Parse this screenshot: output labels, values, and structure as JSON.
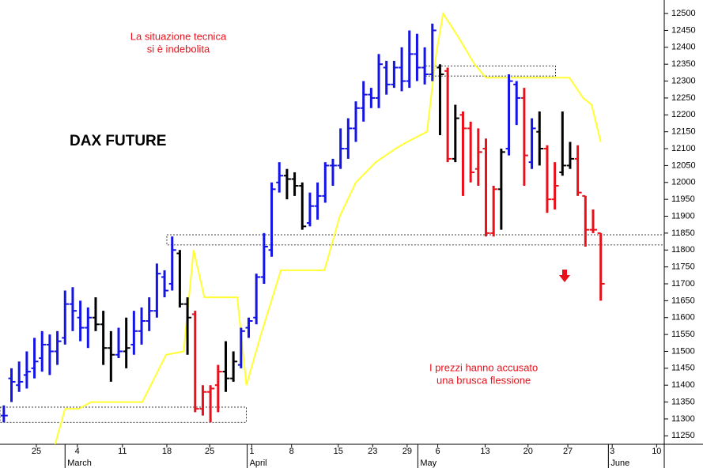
{
  "chart_data": {
    "type": "ohlc",
    "title": "DAX FUTURE",
    "annotations": [
      {
        "lines": [
          "La situazione tecnica",
          "si è indebolita"
        ],
        "color": "#e8101a",
        "x": 22.8,
        "y": 12430
      },
      {
        "lines": [
          "I prezzi hanno accusato",
          "una brusca flessione"
        ],
        "color": "#e8101a",
        "x": 62.7,
        "y": 11450
      }
    ],
    "xlim": [
      -0.5,
      86.3
    ],
    "ylim": [
      11225,
      12540
    ],
    "yticks": [
      11250,
      11300,
      11350,
      11400,
      11450,
      11500,
      11550,
      11600,
      11650,
      11700,
      11750,
      11800,
      11850,
      11900,
      11950,
      12000,
      12050,
      12100,
      12150,
      12200,
      12250,
      12300,
      12350,
      12400,
      12450,
      12500
    ],
    "xticks": [
      {
        "value": 4.25,
        "label": "25"
      },
      {
        "value": 9.6,
        "label": "4"
      },
      {
        "value": 15.5,
        "label": "11"
      },
      {
        "value": 21.3,
        "label": "18"
      },
      {
        "value": 26.9,
        "label": "25"
      },
      {
        "value": 32.4,
        "label": "1"
      },
      {
        "value": 37.6,
        "label": "8"
      },
      {
        "value": 43.7,
        "label": "15"
      },
      {
        "value": 48.2,
        "label": "23"
      },
      {
        "value": 52.7,
        "label": "29"
      },
      {
        "value": 56.7,
        "label": "6"
      },
      {
        "value": 62.9,
        "label": "13"
      },
      {
        "value": 68.5,
        "label": "20"
      },
      {
        "value": 73.7,
        "label": "27"
      },
      {
        "value": 79.5,
        "label": "3"
      },
      {
        "value": 85.3,
        "label": "10"
      }
    ],
    "month_ticks": [
      {
        "value": 8.0,
        "label": "March"
      },
      {
        "value": 31.8,
        "label": "April"
      },
      {
        "value": 54.1,
        "label": "May"
      },
      {
        "value": 79.0,
        "label": "June"
      }
    ],
    "series": [
      {
        "color": "#1414e6",
        "x": [
          0,
          1,
          2,
          3,
          4,
          5,
          6,
          7,
          8,
          9,
          10,
          11,
          15,
          17,
          18,
          19,
          20,
          21,
          22,
          31,
          32,
          33,
          34,
          35,
          36,
          40,
          41,
          42,
          43,
          44,
          45,
          46,
          47,
          48,
          49,
          50,
          51,
          52,
          53,
          54,
          55,
          56,
          66,
          67,
          69
        ],
        "open": [
          11310,
          11420,
          11400,
          11430,
          11450,
          11480,
          11520,
          11500,
          11540,
          11640,
          11600,
          11570,
          11490,
          11520,
          11560,
          11590,
          11620,
          11720,
          11700,
          11460,
          11570,
          11600,
          11720,
          11800,
          12000,
          11880,
          11930,
          11960,
          12050,
          12050,
          12100,
          12160,
          12220,
          12260,
          12250,
          12340,
          12290,
          12340,
          12300,
          12380,
          12340,
          12320,
          12100,
          12290,
          12060
        ],
        "high": [
          11340,
          11450,
          11470,
          11500,
          11540,
          11560,
          11550,
          11560,
          11680,
          11690,
          11650,
          11630,
          11570,
          11620,
          11630,
          11660,
          11760,
          11740,
          11840,
          11570,
          11600,
          11730,
          11850,
          12000,
          12060,
          11970,
          12000,
          12060,
          12070,
          12160,
          12190,
          12240,
          12300,
          12280,
          12380,
          12360,
          12360,
          12400,
          12450,
          12440,
          12400,
          12470,
          12320,
          12300,
          12190
        ],
        "low": [
          11290,
          11350,
          11380,
          11390,
          11420,
          11440,
          11430,
          11460,
          11520,
          11560,
          11530,
          11510,
          11480,
          11490,
          11520,
          11560,
          11600,
          11660,
          11680,
          11450,
          11540,
          11580,
          11700,
          11780,
          11970,
          11870,
          11890,
          11940,
          11990,
          12040,
          12070,
          12120,
          12180,
          12220,
          12220,
          12260,
          12280,
          12270,
          12280,
          12300,
          12290,
          12300,
          12080,
          12170,
          12040
        ],
        "close": [
          11310,
          11410,
          11410,
          11440,
          11470,
          11520,
          11500,
          11530,
          11640,
          11620,
          11570,
          11600,
          11500,
          11560,
          11590,
          11620,
          11730,
          11680,
          11800,
          11560,
          11590,
          11720,
          11810,
          11980,
          12020,
          11930,
          11960,
          12050,
          12050,
          12100,
          12160,
          12220,
          12260,
          12250,
          12350,
          12290,
          12340,
          12300,
          12380,
          12340,
          12320,
          12450,
          12300,
          12250,
          12160
        ]
      },
      {
        "color": "#000000",
        "x": [
          12,
          13,
          14,
          16,
          23,
          24,
          29,
          30,
          37,
          38,
          39,
          57,
          59,
          65,
          70,
          73,
          74
        ],
        "open": [
          11600,
          11580,
          11510,
          11500,
          11790,
          11640,
          11440,
          11420,
          12020,
          12010,
          11990,
          12340,
          12070,
          11980,
          12150,
          12030,
          12050
        ],
        "high": [
          11660,
          11620,
          11560,
          11600,
          11800,
          11660,
          11530,
          11500,
          12040,
          12030,
          12000,
          12350,
          12230,
          12100,
          12210,
          12210,
          12120
        ],
        "low": [
          11560,
          11460,
          11410,
          11450,
          11630,
          11490,
          11380,
          11410,
          11950,
          11960,
          11860,
          12140,
          12060,
          11860,
          12050,
          12020,
          12040
        ],
        "close": [
          11580,
          11510,
          11490,
          11510,
          11640,
          11600,
          11420,
          11470,
          12010,
          11990,
          11870,
          12320,
          12190,
          12090,
          12100,
          12050,
          12070
        ]
      },
      {
        "color": "#e8101a",
        "x": [
          25,
          26,
          27,
          28,
          58,
          60,
          61,
          62,
          63,
          64,
          68,
          71,
          72,
          75,
          76,
          77,
          78
        ],
        "open": [
          11610,
          11330,
          11380,
          11400,
          12330,
          12200,
          12160,
          12040,
          12100,
          11850,
          12250,
          12100,
          11950,
          12070,
          11960,
          11860,
          11850
        ],
        "high": [
          11620,
          11400,
          11400,
          11460,
          12340,
          12210,
          12180,
          12160,
          12130,
          11990,
          12280,
          12110,
          12060,
          12110,
          11960,
          11920,
          11850
        ],
        "low": [
          11320,
          11310,
          11290,
          11320,
          12060,
          11960,
          12000,
          11990,
          11840,
          11840,
          11990,
          11910,
          11920,
          11960,
          11810,
          11850,
          11650
        ],
        "close": [
          11330,
          11380,
          11390,
          11440,
          12070,
          12160,
          12030,
          12090,
          11850,
          11980,
          12080,
          11950,
          11990,
          11970,
          11860,
          11860,
          11700
        ]
      }
    ],
    "overlay": {
      "color": "#ffff33",
      "x": [
        6.7,
        8.0,
        9.8,
        11.4,
        18.1,
        21.2,
        23.5,
        24.8,
        26.2,
        30.5,
        31.7,
        33.6,
        36.2,
        41.9,
        43.9,
        46.0,
        48.6,
        51.2,
        52.7,
        55.3,
        56.5,
        57.4,
        59.4,
        61.5,
        63.0,
        73.9,
        75.7,
        76.8,
        78.0
      ],
      "values": [
        11225,
        11330,
        11330,
        11350,
        11350,
        11490,
        11500,
        11800,
        11660,
        11660,
        11400,
        11550,
        11740,
        11740,
        11900,
        12000,
        12060,
        12100,
        12120,
        12150,
        12380,
        12500,
        12430,
        12350,
        12310,
        12310,
        12250,
        12230,
        12120
      ]
    },
    "reference_boxes": [
      {
        "x": [
          -0.5,
          31.7
        ],
        "y": [
          11290,
          11335
        ]
      },
      {
        "x": [
          21.3,
          86.3
        ],
        "y": [
          11815,
          11845
        ]
      },
      {
        "x": [
          55.1,
          72.1
        ],
        "y": [
          12315,
          12345
        ]
      }
    ]
  }
}
